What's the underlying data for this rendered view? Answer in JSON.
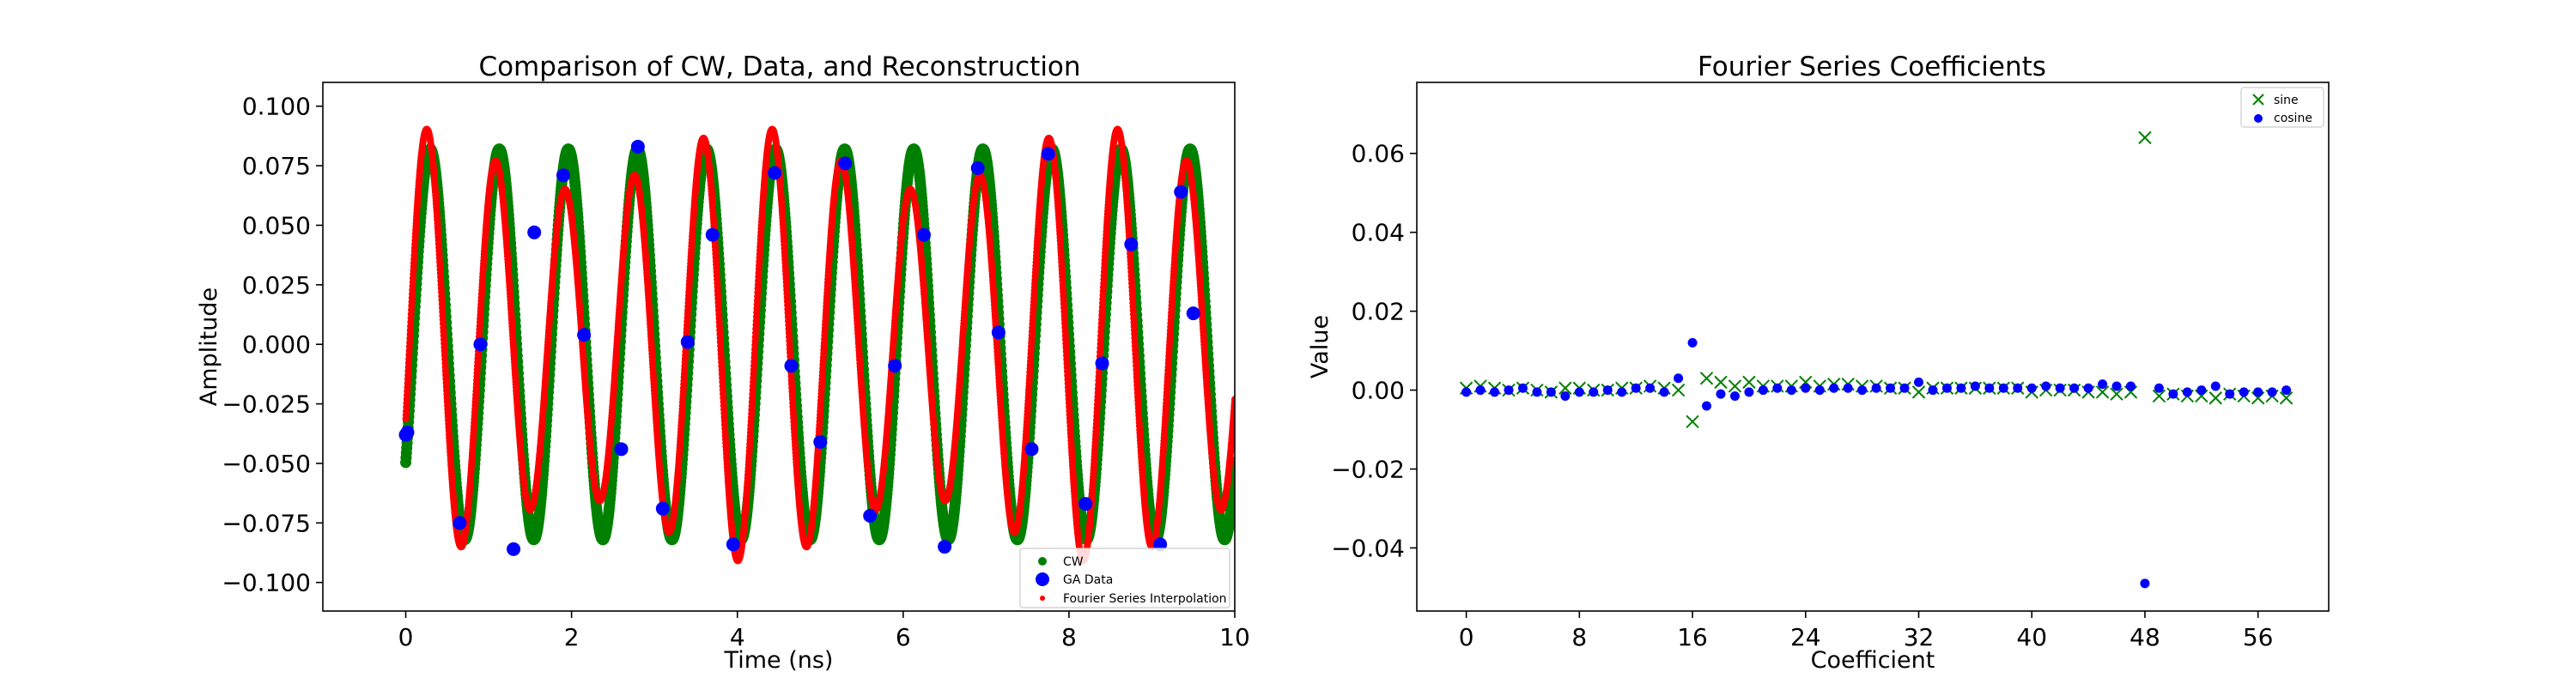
{
  "chart_data": [
    {
      "type": "line",
      "title": "Comparison of CW, Data, and Reconstruction",
      "xlabel": "Time (ns)",
      "ylabel": "Amplitude",
      "xlim": [
        -1,
        10
      ],
      "ylim": [
        -0.112,
        0.11
      ],
      "xticks": [
        "0",
        "2",
        "4",
        "6",
        "8",
        "10"
      ],
      "yticks": [
        "-0.100",
        "-0.075",
        "-0.050",
        "-0.025",
        "0.000",
        "0.025",
        "0.050",
        "0.075",
        "0.100"
      ],
      "legend_position": "bottom-right",
      "grid": false,
      "series": [
        {
          "name": "CW",
          "color": "#008000",
          "style": "thick-dots",
          "model": {
            "amplitude": 0.082,
            "frequency_ghz": 1.2,
            "phase_rad": -0.65
          }
        },
        {
          "name": "GA Data",
          "color": "#0000ff",
          "style": "markers",
          "x": [
            0.0,
            0.02,
            0.65,
            0.9,
            1.3,
            1.55,
            1.9,
            2.15,
            2.6,
            2.8,
            3.1,
            3.4,
            3.7,
            3.95,
            4.45,
            4.65,
            5.0,
            5.3,
            5.6,
            5.9,
            6.25,
            6.5,
            6.9,
            7.15,
            7.55,
            7.75,
            8.2,
            8.4,
            8.75,
            9.1,
            9.35,
            9.5
          ],
          "y": [
            -0.038,
            -0.037,
            -0.075,
            0.0,
            -0.086,
            0.047,
            0.071,
            0.004,
            -0.044,
            0.083,
            -0.069,
            0.001,
            0.046,
            -0.084,
            0.072,
            -0.009,
            -0.041,
            0.076,
            -0.072,
            -0.009,
            0.046,
            -0.085,
            0.074,
            0.005,
            -0.044,
            0.08,
            -0.067,
            -0.008,
            0.042,
            -0.084,
            0.064,
            0.013
          ]
        },
        {
          "name": "Fourier Series Interpolation",
          "color": "#ff0000",
          "style": "small-dots",
          "model": {
            "amplitude": 0.078,
            "frequency_ghz": 1.2,
            "phase_rad": -0.35,
            "modulation_depth": 0.17,
            "modulation_frequency_ghz": 0.24
          }
        }
      ]
    },
    {
      "type": "scatter",
      "title": "Fourier Series Coefficients",
      "xlabel": "Coefficient",
      "ylabel": "Value",
      "xlim": [
        -3.5,
        61
      ],
      "ylim": [
        -0.056,
        0.078
      ],
      "xticks": [
        "0",
        "8",
        "16",
        "24",
        "32",
        "40",
        "48",
        "56"
      ],
      "yticks": [
        "-0.04",
        "-0.02",
        "0.00",
        "0.02",
        "0.04",
        "0.06"
      ],
      "legend_position": "top-right",
      "grid": false,
      "x": [
        0,
        1,
        2,
        3,
        4,
        5,
        6,
        7,
        8,
        9,
        10,
        11,
        12,
        13,
        14,
        15,
        16,
        17,
        18,
        19,
        20,
        21,
        22,
        23,
        24,
        25,
        26,
        27,
        28,
        29,
        30,
        31,
        32,
        33,
        34,
        35,
        36,
        37,
        38,
        39,
        40,
        41,
        42,
        43,
        44,
        45,
        46,
        47,
        48,
        49,
        50,
        51,
        52,
        53,
        54,
        55,
        56,
        57,
        58
      ],
      "series": [
        {
          "name": "sine",
          "color": "#008000",
          "marker": "x",
          "values": [
            0.0005,
            0.001,
            0.0005,
            0.0,
            0.0005,
            0.0,
            -0.0005,
            0.0005,
            0.0005,
            0.0,
            0.0,
            0.0005,
            0.0005,
            0.001,
            0.0005,
            0.0,
            -0.008,
            0.003,
            0.002,
            0.001,
            0.002,
            0.001,
            0.001,
            0.001,
            0.002,
            0.001,
            0.0015,
            0.0015,
            0.001,
            0.001,
            0.0005,
            0.0005,
            -0.0005,
            0.0005,
            0.0005,
            0.0005,
            0.0005,
            0.0005,
            0.0005,
            0.0005,
            -0.0005,
            0.0,
            0.0,
            0.0,
            -0.0005,
            -0.0005,
            -0.001,
            -0.0005,
            0.064,
            -0.0015,
            -0.001,
            -0.0015,
            -0.0015,
            -0.002,
            -0.001,
            -0.0015,
            -0.002,
            -0.0015,
            -0.002
          ]
        },
        {
          "name": "cosine",
          "color": "#0000ff",
          "marker": "o",
          "values": [
            -0.0005,
            0.0,
            -0.0005,
            0.0,
            0.0005,
            -0.0005,
            -0.0005,
            -0.0015,
            -0.0005,
            -0.0005,
            0.0,
            -0.0005,
            0.0005,
            0.0005,
            -0.0005,
            0.003,
            0.012,
            -0.004,
            -0.001,
            -0.0015,
            -0.0005,
            0.0,
            0.0005,
            0.0,
            0.0005,
            0.0,
            0.0005,
            0.0005,
            0.0,
            0.0005,
            0.0005,
            0.0005,
            0.002,
            0.0,
            0.0005,
            0.0005,
            0.001,
            0.0005,
            0.0005,
            0.0005,
            0.0005,
            0.001,
            0.0005,
            0.0005,
            0.0005,
            0.0015,
            0.001,
            0.001,
            -0.049,
            0.0005,
            -0.001,
            -0.0005,
            0.0,
            0.001,
            -0.001,
            -0.0005,
            -0.0005,
            -0.0005,
            0.0
          ]
        }
      ]
    }
  ]
}
